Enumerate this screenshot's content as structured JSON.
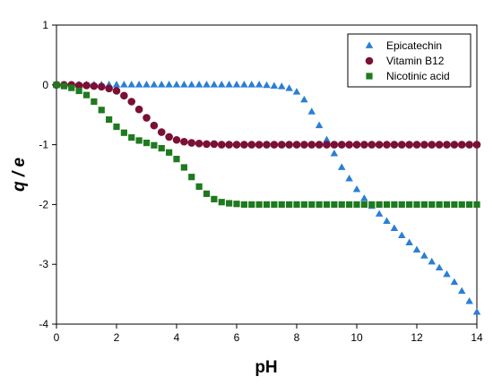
{
  "chart_data": {
    "type": "scatter",
    "xlabel": "pH",
    "ylabel": "q / e",
    "xlim": [
      0,
      14
    ],
    "ylim": [
      -4,
      1
    ],
    "x_ticks": [
      "0",
      "2",
      "4",
      "6",
      "8",
      "10",
      "12",
      "14"
    ],
    "y_ticks": [
      "1",
      "0",
      "-1",
      "-2",
      "-3",
      "-4"
    ],
    "grid": false,
    "legend_position": "top-right",
    "series": [
      {
        "name": "Epicatechin",
        "marker": "triangle",
        "color": "#2a7fd4",
        "x": [
          0.0,
          0.25,
          0.5,
          0.75,
          1.0,
          1.25,
          1.5,
          1.75,
          2.0,
          2.25,
          2.5,
          2.75,
          3.0,
          3.25,
          3.5,
          3.75,
          4.0,
          4.25,
          4.5,
          4.75,
          5.0,
          5.25,
          5.5,
          5.75,
          6.0,
          6.25,
          6.5,
          6.75,
          7.0,
          7.25,
          7.5,
          7.75,
          8.0,
          8.25,
          8.5,
          8.75,
          9.0,
          9.25,
          9.5,
          9.75,
          10.0,
          10.25,
          10.5,
          10.75,
          11.0,
          11.25,
          11.5,
          11.75,
          12.0,
          12.25,
          12.5,
          12.75,
          13.0,
          13.25,
          13.5,
          13.75,
          14.0
        ],
        "y": [
          0,
          0,
          0,
          0,
          0,
          0,
          0,
          0,
          0,
          0,
          0,
          0,
          0,
          0,
          0,
          0,
          0,
          0,
          0,
          0,
          0,
          0,
          0,
          0,
          0,
          0,
          0,
          0,
          -0.01,
          -0.02,
          -0.03,
          -0.06,
          -0.12,
          -0.25,
          -0.45,
          -0.68,
          -0.92,
          -1.15,
          -1.38,
          -1.57,
          -1.75,
          -1.9,
          -2.03,
          -2.16,
          -2.28,
          -2.4,
          -2.52,
          -2.64,
          -2.76,
          -2.86,
          -2.96,
          -3.06,
          -3.17,
          -3.3,
          -3.45,
          -3.62,
          -3.8
        ]
      },
      {
        "name": "Vitamin B12",
        "marker": "circle",
        "color": "#7a1035",
        "x": [
          0.0,
          0.25,
          0.5,
          0.75,
          1.0,
          1.25,
          1.5,
          1.75,
          2.0,
          2.25,
          2.5,
          2.75,
          3.0,
          3.25,
          3.5,
          3.75,
          4.0,
          4.25,
          4.5,
          4.75,
          5.0,
          5.25,
          5.5,
          5.75,
          6.0,
          6.25,
          6.5,
          6.75,
          7.0,
          7.25,
          7.5,
          7.75,
          8.0,
          8.25,
          8.5,
          8.75,
          9.0,
          9.25,
          9.5,
          9.75,
          10.0,
          10.25,
          10.5,
          10.75,
          11.0,
          11.25,
          11.5,
          11.75,
          12.0,
          12.25,
          12.5,
          12.75,
          13.0,
          13.25,
          13.5,
          13.75,
          14.0
        ],
        "y": [
          0,
          0,
          0,
          -0.01,
          -0.01,
          -0.02,
          -0.03,
          -0.06,
          -0.1,
          -0.18,
          -0.28,
          -0.41,
          -0.55,
          -0.68,
          -0.79,
          -0.87,
          -0.92,
          -0.95,
          -0.97,
          -0.98,
          -0.99,
          -0.99,
          -1,
          -1,
          -1,
          -1,
          -1,
          -1,
          -1,
          -1,
          -1,
          -1,
          -1,
          -1,
          -1,
          -1,
          -1,
          -1,
          -1,
          -1,
          -1,
          -1,
          -1,
          -1,
          -1,
          -1,
          -1,
          -1,
          -1,
          -1,
          -1,
          -1,
          -1,
          -1,
          -1,
          -1,
          -1
        ]
      },
      {
        "name": "Nicotinic acid",
        "marker": "square",
        "color": "#1e7a1e",
        "x": [
          0.0,
          0.25,
          0.5,
          0.75,
          1.0,
          1.25,
          1.5,
          1.75,
          2.0,
          2.25,
          2.5,
          2.75,
          3.0,
          3.25,
          3.5,
          3.75,
          4.0,
          4.25,
          4.5,
          4.75,
          5.0,
          5.25,
          5.5,
          5.75,
          6.0,
          6.25,
          6.5,
          6.75,
          7.0,
          7.25,
          7.5,
          7.75,
          8.0,
          8.25,
          8.5,
          8.75,
          9.0,
          9.25,
          9.5,
          9.75,
          10.0,
          10.25,
          10.5,
          10.75,
          11.0,
          11.25,
          11.5,
          11.75,
          12.0,
          12.25,
          12.5,
          12.75,
          13.0,
          13.25,
          13.5,
          13.75,
          14.0
        ],
        "y": [
          0,
          -0.02,
          -0.05,
          -0.1,
          -0.17,
          -0.28,
          -0.42,
          -0.58,
          -0.7,
          -0.8,
          -0.88,
          -0.93,
          -0.97,
          -1.01,
          -1.06,
          -1.13,
          -1.24,
          -1.38,
          -1.54,
          -1.7,
          -1.82,
          -1.91,
          -1.96,
          -1.98,
          -1.99,
          -2,
          -2,
          -2,
          -2,
          -2,
          -2,
          -2,
          -2,
          -2,
          -2,
          -2,
          -2,
          -2,
          -2,
          -2,
          -2,
          -2,
          -2,
          -2,
          -2,
          -2,
          -2,
          -2,
          -2,
          -2,
          -2,
          -2,
          -2,
          -2,
          -2,
          -2,
          -2
        ]
      }
    ]
  }
}
